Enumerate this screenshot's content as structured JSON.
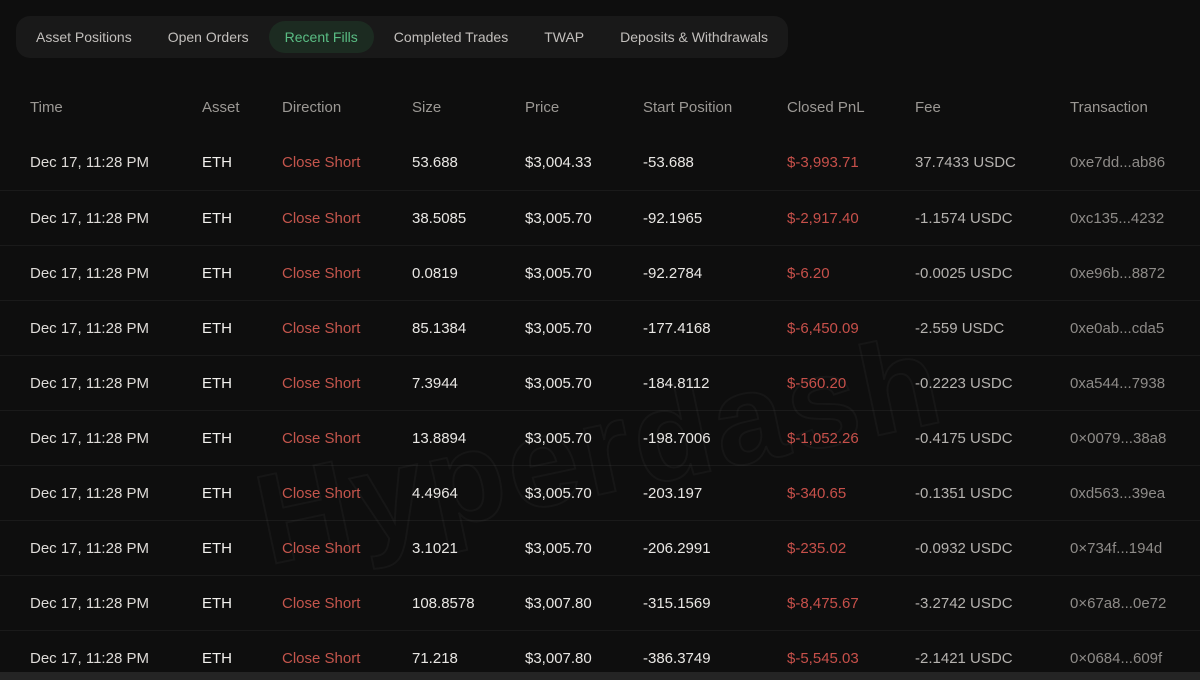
{
  "tabs": [
    {
      "label": "Asset Positions",
      "active": false
    },
    {
      "label": "Open Orders",
      "active": false
    },
    {
      "label": "Recent Fills",
      "active": true
    },
    {
      "label": "Completed Trades",
      "active": false
    },
    {
      "label": "TWAP",
      "active": false
    },
    {
      "label": "Deposits & Withdrawals",
      "active": false
    }
  ],
  "watermark": "Hyperdash",
  "colors": {
    "background": "#0e0e0e",
    "tabbar_background": "#191919",
    "active_tab_background": "#1c2b21",
    "active_tab_text": "#5abd84",
    "negative_red": "#c4554c",
    "primary_text": "#e9e7e4",
    "muted_text": "#9b9894"
  },
  "table": {
    "columns": [
      "Time",
      "Asset",
      "Direction",
      "Size",
      "Price",
      "Start Position",
      "Closed PnL",
      "Fee",
      "Transaction"
    ],
    "fields": [
      "time",
      "asset",
      "direction",
      "size",
      "price",
      "start_position",
      "closed_pnl",
      "fee",
      "transaction"
    ],
    "rows": [
      {
        "time": "Dec 17, 11:28 PM",
        "asset": "ETH",
        "direction": "Close Short",
        "size": "53.688",
        "price": "$3,004.33",
        "start_position": "-53.688",
        "closed_pnl": "$-3,993.71",
        "fee": "37.7433 USDC",
        "transaction": "0xe7dd...ab86"
      },
      {
        "time": "Dec 17, 11:28 PM",
        "asset": "ETH",
        "direction": "Close Short",
        "size": "38.5085",
        "price": "$3,005.70",
        "start_position": "-92.1965",
        "closed_pnl": "$-2,917.40",
        "fee": "-1.1574 USDC",
        "transaction": "0xc135...4232"
      },
      {
        "time": "Dec 17, 11:28 PM",
        "asset": "ETH",
        "direction": "Close Short",
        "size": "0.0819",
        "price": "$3,005.70",
        "start_position": "-92.2784",
        "closed_pnl": "$-6.20",
        "fee": "-0.0025 USDC",
        "transaction": "0xe96b...8872"
      },
      {
        "time": "Dec 17, 11:28 PM",
        "asset": "ETH",
        "direction": "Close Short",
        "size": "85.1384",
        "price": "$3,005.70",
        "start_position": "-177.4168",
        "closed_pnl": "$-6,450.09",
        "fee": "-2.559 USDC",
        "transaction": "0xe0ab...cda5"
      },
      {
        "time": "Dec 17, 11:28 PM",
        "asset": "ETH",
        "direction": "Close Short",
        "size": "7.3944",
        "price": "$3,005.70",
        "start_position": "-184.8112",
        "closed_pnl": "$-560.20",
        "fee": "-0.2223 USDC",
        "transaction": "0xa544...7938"
      },
      {
        "time": "Dec 17, 11:28 PM",
        "asset": "ETH",
        "direction": "Close Short",
        "size": "13.8894",
        "price": "$3,005.70",
        "start_position": "-198.7006",
        "closed_pnl": "$-1,052.26",
        "fee": "-0.4175 USDC",
        "transaction": "0×0079...38a8"
      },
      {
        "time": "Dec 17, 11:28 PM",
        "asset": "ETH",
        "direction": "Close Short",
        "size": "4.4964",
        "price": "$3,005.70",
        "start_position": "-203.197",
        "closed_pnl": "$-340.65",
        "fee": "-0.1351 USDC",
        "transaction": "0xd563...39ea"
      },
      {
        "time": "Dec 17, 11:28 PM",
        "asset": "ETH",
        "direction": "Close Short",
        "size": "3.1021",
        "price": "$3,005.70",
        "start_position": "-206.2991",
        "closed_pnl": "$-235.02",
        "fee": "-0.0932 USDC",
        "transaction": "0×734f...194d"
      },
      {
        "time": "Dec 17, 11:28 PM",
        "asset": "ETH",
        "direction": "Close Short",
        "size": "108.8578",
        "price": "$3,007.80",
        "start_position": "-315.1569",
        "closed_pnl": "$-8,475.67",
        "fee": "-3.2742 USDC",
        "transaction": "0×67a8...0e72"
      },
      {
        "time": "Dec 17, 11:28 PM",
        "asset": "ETH",
        "direction": "Close Short",
        "size": "71.218",
        "price": "$3,007.80",
        "start_position": "-386.3749",
        "closed_pnl": "$-5,545.03",
        "fee": "-2.1421 USDC",
        "transaction": "0×0684...609f"
      }
    ]
  }
}
